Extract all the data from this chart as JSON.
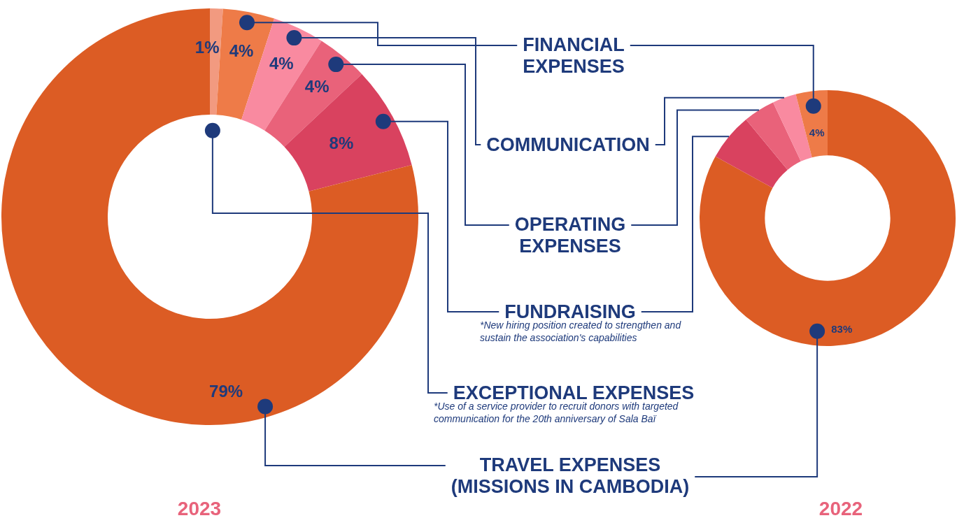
{
  "chart_data": [
    {
      "type": "donut",
      "title": "2023",
      "categories": [
        "EXCEPTIONAL EXPENSES",
        "FINANCIAL EXPENSES",
        "COMMUNICATION",
        "OPERATING EXPENSES",
        "FUNDRAISING",
        "TRAVEL EXPENSES (MISSIONS IN CAMBODIA)"
      ],
      "values": [
        1,
        4,
        4,
        4,
        8,
        79
      ],
      "colors": [
        "#f29a80",
        "#ee7b48",
        "#f98aa0",
        "#e9627a",
        "#d9425f",
        "#dc5c24"
      ],
      "value_labels": [
        "1%",
        "4%",
        "4%",
        "4%",
        "8%",
        "79%"
      ],
      "annotations": [
        "*New hiring position created to strengthen and sustain the association's capabilities",
        "*Use of a service provider to recruit donors with targeted communication for the 20th anniversary of Sala Baï"
      ],
      "legend": false
    },
    {
      "type": "donut",
      "title": "2022",
      "categories": [
        null,
        null,
        null,
        null,
        null
      ],
      "values": [
        83,
        6,
        4,
        3,
        4
      ],
      "colors": [
        "#dc5c24",
        "#d9425f",
        "#e9627a",
        "#f98aa0",
        "#ee7b48"
      ],
      "value_labels": [
        "83%",
        null,
        null,
        null,
        "4%"
      ],
      "legend": false
    }
  ]
}
